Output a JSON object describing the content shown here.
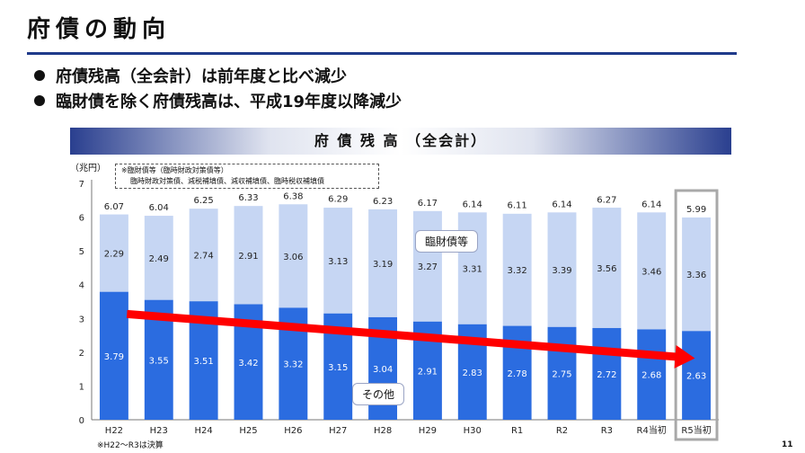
{
  "page": {
    "title": "府債の動向",
    "bullets": [
      "府債残高（全会計）は前年度と比べ減少",
      "臨財債を除く府債残高は、平成19年度以降減少"
    ],
    "page_number": "11"
  },
  "chart_data": {
    "type": "bar",
    "stacked": true,
    "title": "府 債 残 高 （全会計）",
    "ylabel": "（兆円）",
    "ylim": [
      0,
      7
    ],
    "yticks": [
      0,
      1,
      2,
      3,
      4,
      5,
      6,
      7
    ],
    "categories": [
      "H22",
      "H23",
      "H24",
      "H25",
      "H26",
      "H27",
      "H28",
      "H29",
      "H30",
      "R1",
      "R2",
      "R3",
      "R4当初",
      "R5当初"
    ],
    "series": [
      {
        "name": "その他",
        "color": "#2b6ce0",
        "values": [
          3.79,
          3.55,
          3.51,
          3.42,
          3.32,
          3.15,
          3.04,
          2.91,
          2.83,
          2.78,
          2.75,
          2.72,
          2.68,
          2.63
        ]
      },
      {
        "name": "臨財債等",
        "color": "#c6d6f3",
        "values": [
          2.29,
          2.49,
          2.74,
          2.91,
          3.06,
          3.13,
          3.19,
          3.27,
          3.31,
          3.32,
          3.39,
          3.56,
          3.46,
          3.36
        ]
      }
    ],
    "totals": [
      6.07,
      6.04,
      6.25,
      6.33,
      6.38,
      6.29,
      6.23,
      6.17,
      6.14,
      6.11,
      6.14,
      6.27,
      6.14,
      5.99
    ],
    "highlight_category": "R5当初",
    "trend_arrow_color": "#ff0000",
    "note_lines": [
      "※臨財債等（臨時財政対策債等）",
      "臨時財政対策債、減税補填債、減収補填債、臨時税収補填債"
    ],
    "footnote": "※H22～R3は決算"
  }
}
